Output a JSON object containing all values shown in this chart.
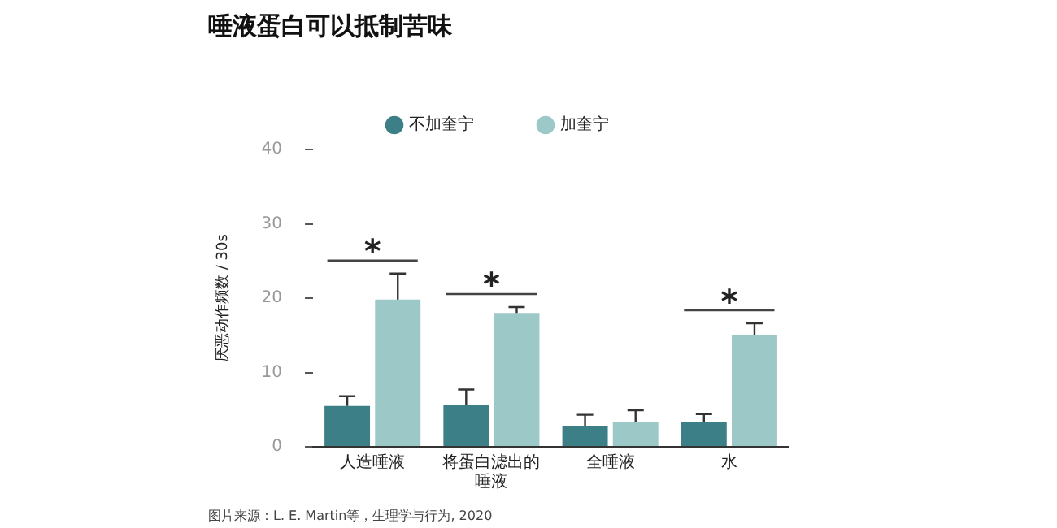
{
  "chart_data": {
    "type": "bar",
    "title": "唾液蛋白可以抵制苦味",
    "ylabel": "厌恶动作频数 / 30s",
    "categories": [
      "人造唾液",
      "将蛋白滤出的唾液",
      "全唾液",
      "水"
    ],
    "series": [
      {
        "name": "不加奎宁",
        "color": "#3d7f86",
        "values": [
          5.5,
          5.6,
          2.8,
          3.3
        ],
        "errors": [
          1.3,
          2.1,
          1.5,
          1.1
        ]
      },
      {
        "name": "加奎宁",
        "color": "#9cc8c8",
        "values": [
          19.8,
          18.0,
          3.3,
          15.0
        ],
        "errors": [
          3.5,
          0.8,
          1.6,
          1.6
        ]
      }
    ],
    "ylim": [
      0,
      40
    ],
    "yticks": [
      0,
      10,
      20,
      30,
      40
    ],
    "grid": false,
    "legend": "top",
    "marker": "circle",
    "annotations": [
      "*",
      "*",
      "*",
      "图片来源：L. E. Martin等，生理学与行为, 2020"
    ]
  }
}
